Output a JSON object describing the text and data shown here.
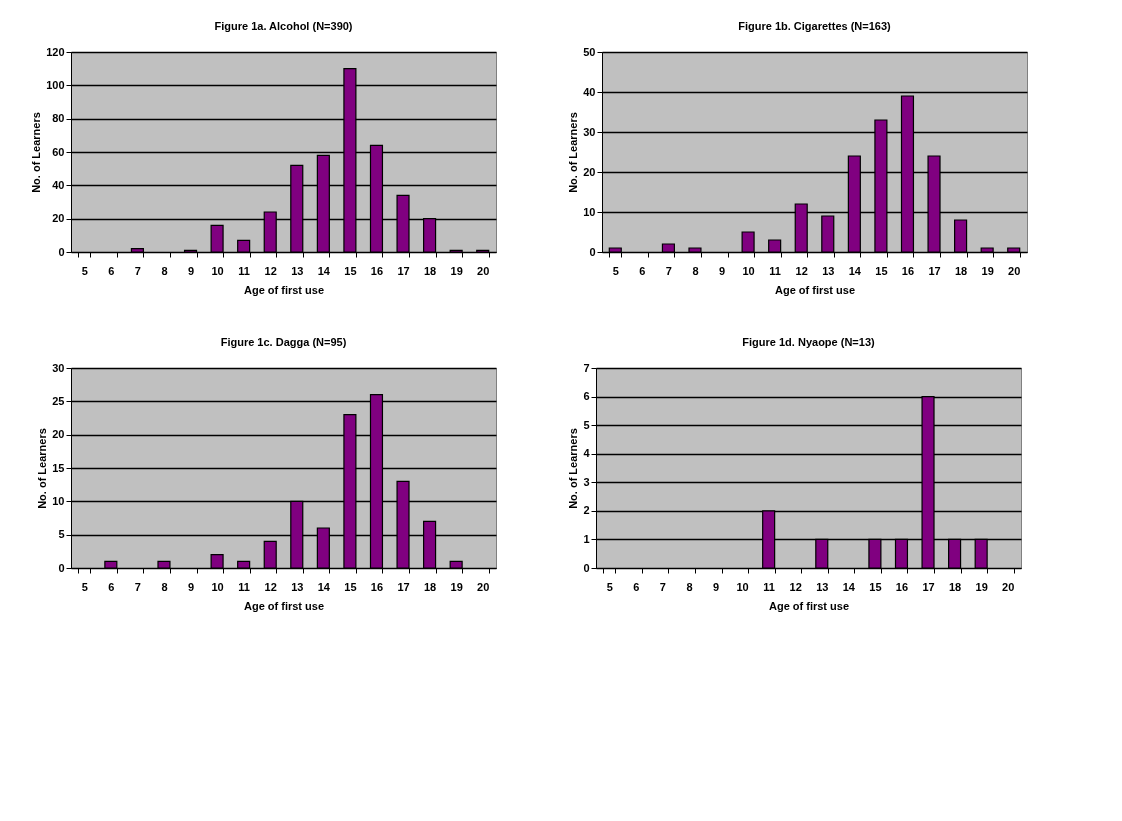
{
  "chart_data": [
    {
      "type": "bar",
      "title": "Figure 1a. Alcohol (N=390)",
      "xlabel": "Age of first use",
      "ylabel": "No. of Learners",
      "categories": [
        "5",
        "6",
        "7",
        "8",
        "9",
        "10",
        "11",
        "12",
        "13",
        "14",
        "15",
        "16",
        "17",
        "18",
        "19",
        "20"
      ],
      "values": [
        0,
        0,
        2,
        0,
        1,
        16,
        7,
        24,
        52,
        58,
        110,
        64,
        34,
        20,
        1,
        1
      ],
      "color": "#800080",
      "ylim": [
        0,
        120
      ],
      "yticks": [
        0,
        20,
        40,
        60,
        80,
        100,
        120
      ],
      "grid": "y"
    },
    {
      "type": "bar",
      "title": "Figure 1b. Cigarettes (N=163)",
      "xlabel": "Age of first use",
      "ylabel": "No. of Learners",
      "categories": [
        "5",
        "6",
        "7",
        "8",
        "9",
        "10",
        "11",
        "12",
        "13",
        "14",
        "15",
        "16",
        "17",
        "18",
        "19",
        "20"
      ],
      "values": [
        1,
        0,
        2,
        1,
        0,
        5,
        3,
        12,
        9,
        24,
        33,
        39,
        24,
        8,
        1,
        1
      ],
      "color": "#800080",
      "ylim": [
        0,
        50
      ],
      "yticks": [
        0,
        10,
        20,
        30,
        40,
        50
      ],
      "grid": "y"
    },
    {
      "type": "bar",
      "title": "Figure 1c. Dagga (N=95)",
      "xlabel": "Age of first use",
      "ylabel": "No. of Learners",
      "categories": [
        "5",
        "6",
        "7",
        "8",
        "9",
        "10",
        "11",
        "12",
        "13",
        "14",
        "15",
        "16",
        "17",
        "18",
        "19",
        "20"
      ],
      "values": [
        0,
        1,
        0,
        1,
        0,
        2,
        1,
        4,
        10,
        6,
        23,
        26,
        13,
        7,
        1,
        0
      ],
      "color": "#800080",
      "ylim": [
        0,
        30
      ],
      "yticks": [
        0,
        5,
        10,
        15,
        20,
        25,
        30
      ],
      "grid": "y"
    },
    {
      "type": "bar",
      "title": "Figure 1d. Nyaope (N=13)",
      "xlabel": "Age of first use",
      "ylabel": "No. of Learners",
      "categories": [
        "5",
        "6",
        "7",
        "8",
        "9",
        "10",
        "11",
        "12",
        "13",
        "14",
        "15",
        "16",
        "17",
        "18",
        "19",
        "20"
      ],
      "values": [
        0,
        0,
        0,
        0,
        0,
        0,
        2,
        0,
        1,
        0,
        1,
        1,
        6,
        1,
        1,
        0
      ],
      "color": "#800080",
      "ylim": [
        0,
        7
      ],
      "yticks": [
        0,
        1,
        2,
        3,
        4,
        5,
        6,
        7
      ],
      "grid": "y"
    }
  ]
}
